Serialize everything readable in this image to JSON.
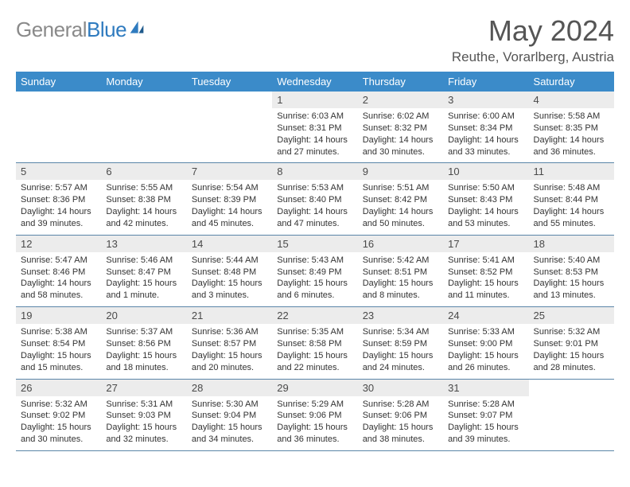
{
  "logo": {
    "word1": "General",
    "word2": "Blue"
  },
  "title": "May 2024",
  "location": "Reuthe, Vorarlberg, Austria",
  "colors": {
    "header_bg": "#3b8bc9",
    "daynum_bg": "#ececec",
    "row_border": "#5a85a8",
    "logo_gray": "#8a8a8a",
    "logo_blue": "#2f7bbf",
    "title_color": "#555555"
  },
  "dayHeaders": [
    "Sunday",
    "Monday",
    "Tuesday",
    "Wednesday",
    "Thursday",
    "Friday",
    "Saturday"
  ],
  "weeks": [
    [
      {
        "n": "",
        "sr": "",
        "ss": "",
        "dl": ""
      },
      {
        "n": "",
        "sr": "",
        "ss": "",
        "dl": ""
      },
      {
        "n": "",
        "sr": "",
        "ss": "",
        "dl": ""
      },
      {
        "n": "1",
        "sr": "Sunrise: 6:03 AM",
        "ss": "Sunset: 8:31 PM",
        "dl": "Daylight: 14 hours and 27 minutes."
      },
      {
        "n": "2",
        "sr": "Sunrise: 6:02 AM",
        "ss": "Sunset: 8:32 PM",
        "dl": "Daylight: 14 hours and 30 minutes."
      },
      {
        "n": "3",
        "sr": "Sunrise: 6:00 AM",
        "ss": "Sunset: 8:34 PM",
        "dl": "Daylight: 14 hours and 33 minutes."
      },
      {
        "n": "4",
        "sr": "Sunrise: 5:58 AM",
        "ss": "Sunset: 8:35 PM",
        "dl": "Daylight: 14 hours and 36 minutes."
      }
    ],
    [
      {
        "n": "5",
        "sr": "Sunrise: 5:57 AM",
        "ss": "Sunset: 8:36 PM",
        "dl": "Daylight: 14 hours and 39 minutes."
      },
      {
        "n": "6",
        "sr": "Sunrise: 5:55 AM",
        "ss": "Sunset: 8:38 PM",
        "dl": "Daylight: 14 hours and 42 minutes."
      },
      {
        "n": "7",
        "sr": "Sunrise: 5:54 AM",
        "ss": "Sunset: 8:39 PM",
        "dl": "Daylight: 14 hours and 45 minutes."
      },
      {
        "n": "8",
        "sr": "Sunrise: 5:53 AM",
        "ss": "Sunset: 8:40 PM",
        "dl": "Daylight: 14 hours and 47 minutes."
      },
      {
        "n": "9",
        "sr": "Sunrise: 5:51 AM",
        "ss": "Sunset: 8:42 PM",
        "dl": "Daylight: 14 hours and 50 minutes."
      },
      {
        "n": "10",
        "sr": "Sunrise: 5:50 AM",
        "ss": "Sunset: 8:43 PM",
        "dl": "Daylight: 14 hours and 53 minutes."
      },
      {
        "n": "11",
        "sr": "Sunrise: 5:48 AM",
        "ss": "Sunset: 8:44 PM",
        "dl": "Daylight: 14 hours and 55 minutes."
      }
    ],
    [
      {
        "n": "12",
        "sr": "Sunrise: 5:47 AM",
        "ss": "Sunset: 8:46 PM",
        "dl": "Daylight: 14 hours and 58 minutes."
      },
      {
        "n": "13",
        "sr": "Sunrise: 5:46 AM",
        "ss": "Sunset: 8:47 PM",
        "dl": "Daylight: 15 hours and 1 minute."
      },
      {
        "n": "14",
        "sr": "Sunrise: 5:44 AM",
        "ss": "Sunset: 8:48 PM",
        "dl": "Daylight: 15 hours and 3 minutes."
      },
      {
        "n": "15",
        "sr": "Sunrise: 5:43 AM",
        "ss": "Sunset: 8:49 PM",
        "dl": "Daylight: 15 hours and 6 minutes."
      },
      {
        "n": "16",
        "sr": "Sunrise: 5:42 AM",
        "ss": "Sunset: 8:51 PM",
        "dl": "Daylight: 15 hours and 8 minutes."
      },
      {
        "n": "17",
        "sr": "Sunrise: 5:41 AM",
        "ss": "Sunset: 8:52 PM",
        "dl": "Daylight: 15 hours and 11 minutes."
      },
      {
        "n": "18",
        "sr": "Sunrise: 5:40 AM",
        "ss": "Sunset: 8:53 PM",
        "dl": "Daylight: 15 hours and 13 minutes."
      }
    ],
    [
      {
        "n": "19",
        "sr": "Sunrise: 5:38 AM",
        "ss": "Sunset: 8:54 PM",
        "dl": "Daylight: 15 hours and 15 minutes."
      },
      {
        "n": "20",
        "sr": "Sunrise: 5:37 AM",
        "ss": "Sunset: 8:56 PM",
        "dl": "Daylight: 15 hours and 18 minutes."
      },
      {
        "n": "21",
        "sr": "Sunrise: 5:36 AM",
        "ss": "Sunset: 8:57 PM",
        "dl": "Daylight: 15 hours and 20 minutes."
      },
      {
        "n": "22",
        "sr": "Sunrise: 5:35 AM",
        "ss": "Sunset: 8:58 PM",
        "dl": "Daylight: 15 hours and 22 minutes."
      },
      {
        "n": "23",
        "sr": "Sunrise: 5:34 AM",
        "ss": "Sunset: 8:59 PM",
        "dl": "Daylight: 15 hours and 24 minutes."
      },
      {
        "n": "24",
        "sr": "Sunrise: 5:33 AM",
        "ss": "Sunset: 9:00 PM",
        "dl": "Daylight: 15 hours and 26 minutes."
      },
      {
        "n": "25",
        "sr": "Sunrise: 5:32 AM",
        "ss": "Sunset: 9:01 PM",
        "dl": "Daylight: 15 hours and 28 minutes."
      }
    ],
    [
      {
        "n": "26",
        "sr": "Sunrise: 5:32 AM",
        "ss": "Sunset: 9:02 PM",
        "dl": "Daylight: 15 hours and 30 minutes."
      },
      {
        "n": "27",
        "sr": "Sunrise: 5:31 AM",
        "ss": "Sunset: 9:03 PM",
        "dl": "Daylight: 15 hours and 32 minutes."
      },
      {
        "n": "28",
        "sr": "Sunrise: 5:30 AM",
        "ss": "Sunset: 9:04 PM",
        "dl": "Daylight: 15 hours and 34 minutes."
      },
      {
        "n": "29",
        "sr": "Sunrise: 5:29 AM",
        "ss": "Sunset: 9:06 PM",
        "dl": "Daylight: 15 hours and 36 minutes."
      },
      {
        "n": "30",
        "sr": "Sunrise: 5:28 AM",
        "ss": "Sunset: 9:06 PM",
        "dl": "Daylight: 15 hours and 38 minutes."
      },
      {
        "n": "31",
        "sr": "Sunrise: 5:28 AM",
        "ss": "Sunset: 9:07 PM",
        "dl": "Daylight: 15 hours and 39 minutes."
      },
      {
        "n": "",
        "sr": "",
        "ss": "",
        "dl": ""
      }
    ]
  ]
}
